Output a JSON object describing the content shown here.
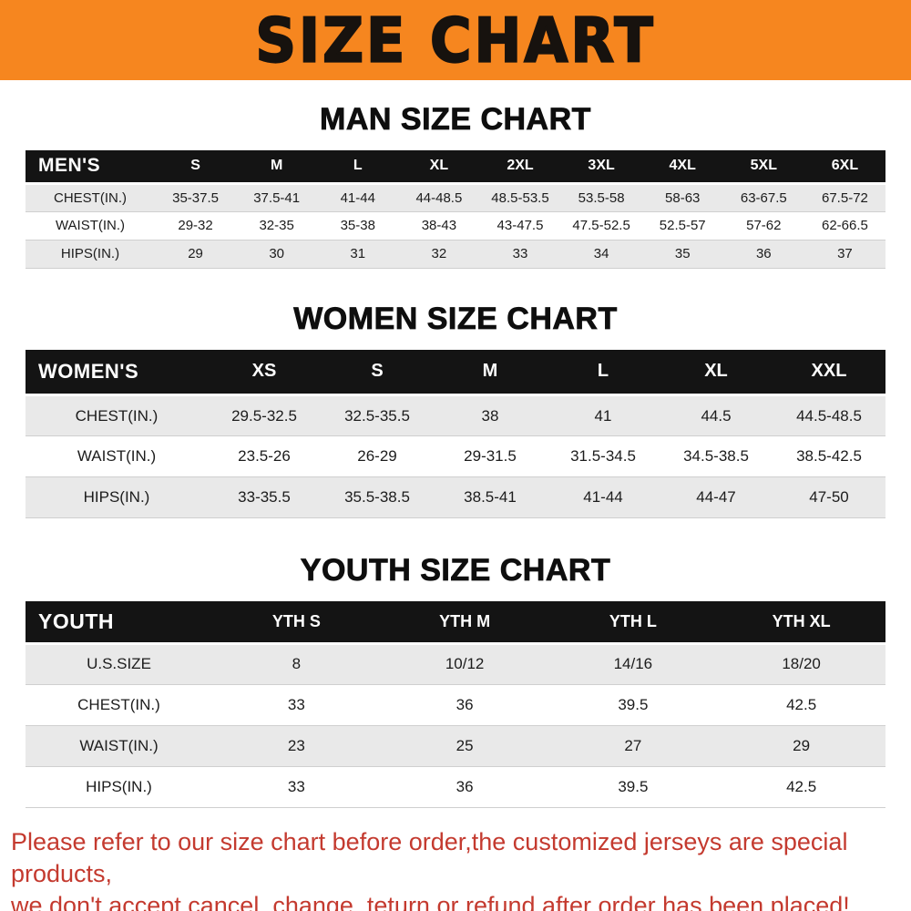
{
  "banner": {
    "title": "SIZE CHART"
  },
  "colors": {
    "banner_bg": "#f6861f",
    "header_bg": "#141414",
    "row_alt": "#e9e9e9",
    "note_color": "#c43a2f"
  },
  "chart_data": [
    {
      "type": "table",
      "id": "men",
      "title": "MAN SIZE CHART",
      "header_label": "MEN'S",
      "columns": [
        "S",
        "M",
        "L",
        "XL",
        "2XL",
        "3XL",
        "4XL",
        "5XL",
        "6XL"
      ],
      "rows": [
        {
          "label": "CHEST(IN.)",
          "values": [
            "35-37.5",
            "37.5-41",
            "41-44",
            "44-48.5",
            "48.5-53.5",
            "53.5-58",
            "58-63",
            "63-67.5",
            "67.5-72"
          ]
        },
        {
          "label": "WAIST(IN.)",
          "values": [
            "29-32",
            "32-35",
            "35-38",
            "38-43",
            "43-47.5",
            "47.5-52.5",
            "52.5-57",
            "57-62",
            "62-66.5"
          ]
        },
        {
          "label": "HIPS(IN.)",
          "values": [
            "29",
            "30",
            "31",
            "32",
            "33",
            "34",
            "35",
            "36",
            "37"
          ]
        }
      ]
    },
    {
      "type": "table",
      "id": "women",
      "title": "WOMEN SIZE CHART",
      "header_label": "WOMEN'S",
      "columns": [
        "XS",
        "S",
        "M",
        "L",
        "XL",
        "XXL"
      ],
      "rows": [
        {
          "label": "CHEST(IN.)",
          "values": [
            "29.5-32.5",
            "32.5-35.5",
            "38",
            "41",
            "44.5",
            "44.5-48.5"
          ]
        },
        {
          "label": "WAIST(IN.)",
          "values": [
            "23.5-26",
            "26-29",
            "29-31.5",
            "31.5-34.5",
            "34.5-38.5",
            "38.5-42.5"
          ]
        },
        {
          "label": "HIPS(IN.)",
          "values": [
            "33-35.5",
            "35.5-38.5",
            "38.5-41",
            "41-44",
            "44-47",
            "47-50"
          ]
        }
      ]
    },
    {
      "type": "table",
      "id": "youth",
      "title": "YOUTH SIZE CHART",
      "header_label": "YOUTH",
      "columns": [
        "YTH S",
        "YTH M",
        "YTH L",
        "YTH XL"
      ],
      "rows": [
        {
          "label": "U.S.SIZE",
          "values": [
            "8",
            "10/12",
            "14/16",
            "18/20"
          ]
        },
        {
          "label": "CHEST(IN.)",
          "values": [
            "33",
            "36",
            "39.5",
            "42.5"
          ]
        },
        {
          "label": "WAIST(IN.)",
          "values": [
            "23",
            "25",
            "27",
            "29"
          ]
        },
        {
          "label": "HIPS(IN.)",
          "values": [
            "33",
            "36",
            "39.5",
            "42.5"
          ]
        }
      ]
    }
  ],
  "footer": {
    "lines": [
      "Please refer to our size chart before order,the customized jerseys are special products,",
      "we don't accept cancel, change, teturn or refund after order has been placed!"
    ]
  }
}
